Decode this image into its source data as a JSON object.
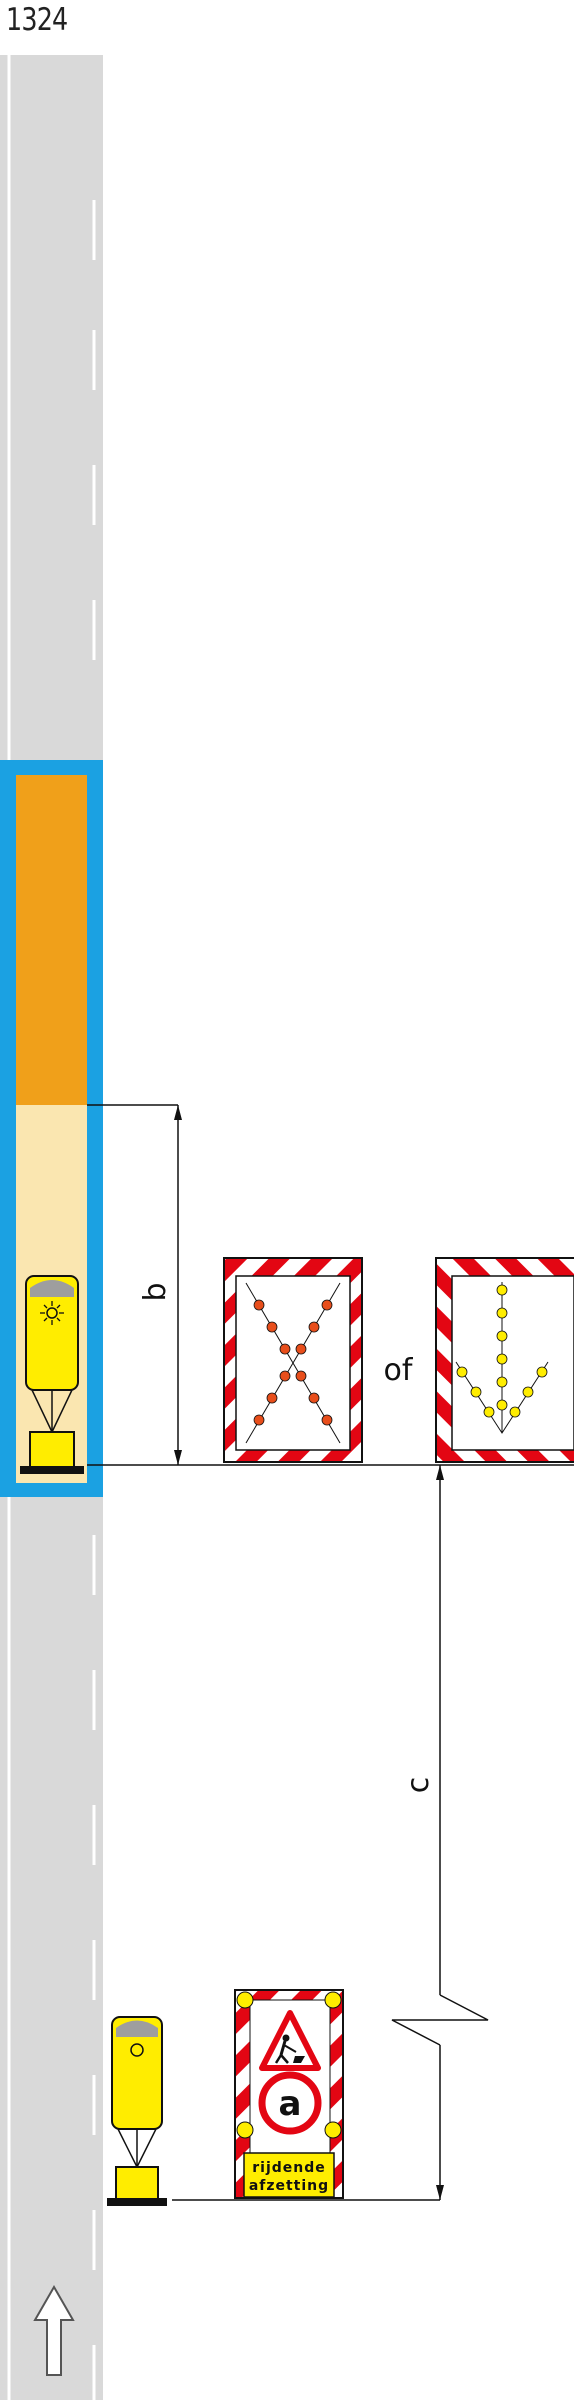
{
  "title": "1324",
  "labels": {
    "dim_b": "b",
    "dim_c": "c",
    "separator": "of"
  },
  "signs": {
    "approach_text_line1": "rijdende",
    "approach_text_line2": "afzetting",
    "approach_letter": "a"
  },
  "colors": {
    "road": "#d9d9d9",
    "lane_marking": "#ffffff",
    "work_zone_frame": "#1ba1e2",
    "work_area": "#f0a01a",
    "buffer_area": "#fae6b0",
    "vehicle": "#ffed00",
    "chevron_red": "#e30613",
    "led_red": "#e84e1b",
    "led_yellow": "#ffed00"
  }
}
